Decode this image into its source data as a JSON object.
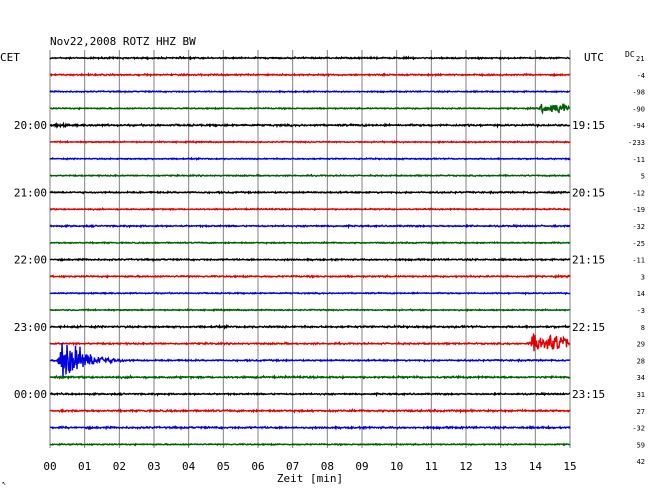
{
  "chart_data": {
    "type": "line",
    "title": "Nov22,2008   ROTZ HHZ BW",
    "left_timezone": "CET",
    "right_timezone": "UTC",
    "dc_label": "DC",
    "dc_top_value": "21",
    "xlabel": "Zeit [min]",
    "xlim": [
      0,
      15
    ],
    "x_ticks": [
      "00",
      "01",
      "02",
      "03",
      "04",
      "05",
      "06",
      "07",
      "08",
      "09",
      "10",
      "11",
      "12",
      "13",
      "14",
      "15"
    ],
    "grid": true,
    "trace_colors": [
      "#000000",
      "#e00000",
      "#0000e0",
      "#006000"
    ],
    "left_hour_labels": [
      {
        "row": 4,
        "text": "20:00"
      },
      {
        "row": 8,
        "text": "21:00"
      },
      {
        "row": 12,
        "text": "22:00"
      },
      {
        "row": 16,
        "text": "23:00"
      },
      {
        "row": 20,
        "text": "00:00"
      }
    ],
    "right_hour_labels": [
      {
        "row": 4,
        "text": "19:15"
      },
      {
        "row": 8,
        "text": "20:15"
      },
      {
        "row": 12,
        "text": "21:15"
      },
      {
        "row": 16,
        "text": "22:15"
      },
      {
        "row": 20,
        "text": "23:15"
      }
    ],
    "dc_offsets": [
      "-4",
      "-98",
      "-90",
      "-94",
      "-233",
      "-11",
      "5",
      "-12",
      "-19",
      "-32",
      "-25",
      "-11",
      "3",
      "14",
      "-3",
      "8",
      "29",
      "28",
      "34",
      "31",
      "27",
      "-32",
      "59",
      "42"
    ],
    "traces": [
      {
        "row": 0,
        "color": "#000000",
        "amp": 1.0
      },
      {
        "row": 1,
        "color": "#e00000",
        "amp": 1.0
      },
      {
        "row": 2,
        "color": "#0000e0",
        "amp": 0.8
      },
      {
        "row": 3,
        "color": "#006000",
        "amp": 0.8,
        "events": [
          {
            "start_min": 14.1,
            "end_min": 15.0,
            "amp": 7
          }
        ]
      },
      {
        "row": 4,
        "color": "#000000",
        "amp": 1.2,
        "events": [
          {
            "start_min": 0.0,
            "end_min": 2.5,
            "amp": 3
          }
        ]
      },
      {
        "row": 5,
        "color": "#e00000",
        "amp": 0.8
      },
      {
        "row": 6,
        "color": "#0000e0",
        "amp": 0.8
      },
      {
        "row": 7,
        "color": "#006000",
        "amp": 0.8
      },
      {
        "row": 8,
        "color": "#000000",
        "amp": 1.0
      },
      {
        "row": 9,
        "color": "#e00000",
        "amp": 0.8
      },
      {
        "row": 10,
        "color": "#0000e0",
        "amp": 1.0
      },
      {
        "row": 11,
        "color": "#006000",
        "amp": 0.8
      },
      {
        "row": 12,
        "color": "#000000",
        "amp": 1.0
      },
      {
        "row": 13,
        "color": "#e00000",
        "amp": 1.0
      },
      {
        "row": 14,
        "color": "#0000e0",
        "amp": 0.8
      },
      {
        "row": 15,
        "color": "#006000",
        "amp": 0.8
      },
      {
        "row": 16,
        "color": "#000000",
        "amp": 1.2
      },
      {
        "row": 17,
        "color": "#e00000",
        "amp": 1.0,
        "events": [
          {
            "start_min": 13.8,
            "end_min": 15.0,
            "amp": 12
          }
        ]
      },
      {
        "row": 18,
        "color": "#0000e0",
        "amp": 1.0,
        "events": [
          {
            "start_min": 0.2,
            "end_min": 3.0,
            "amp": 40
          }
        ]
      },
      {
        "row": 19,
        "color": "#006000",
        "amp": 1.2
      },
      {
        "row": 20,
        "color": "#000000",
        "amp": 1.0
      },
      {
        "row": 21,
        "color": "#e00000",
        "amp": 1.2
      },
      {
        "row": 22,
        "color": "#0000e0",
        "amp": 1.2
      },
      {
        "row": 23,
        "color": "#006000",
        "amp": 0.8
      }
    ]
  }
}
